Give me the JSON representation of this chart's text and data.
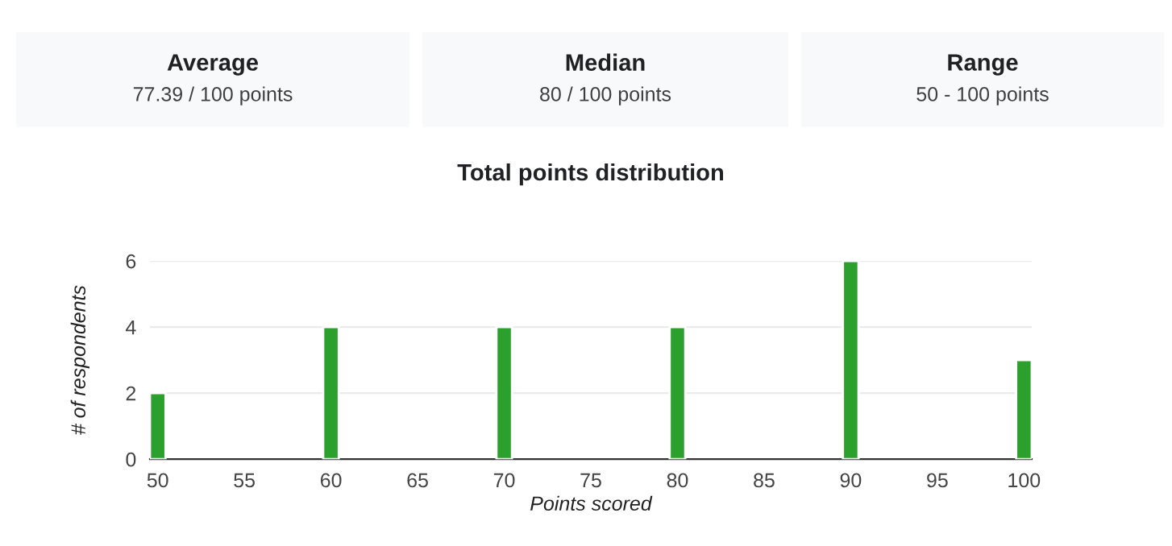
{
  "chart_data": [
    {
      "type": "other",
      "title": "Average",
      "annotations": [
        "77.39 / 100 points"
      ]
    },
    {
      "type": "other",
      "title": "Median",
      "annotations": [
        "80 / 100 points"
      ]
    },
    {
      "type": "other",
      "title": "Range",
      "annotations": [
        "50 - 100 points"
      ]
    },
    {
      "type": "bar",
      "title": "Total points distribution",
      "xlabel": "Points scored",
      "ylabel": "# of respondents",
      "x": [
        50,
        60,
        70,
        80,
        90,
        100
      ],
      "values": [
        2,
        4,
        4,
        4,
        6,
        3
      ],
      "color": "#2ca02c",
      "xlim": [
        49.55,
        100.45
      ],
      "xticks": [
        50,
        55,
        60,
        65,
        70,
        75,
        80,
        85,
        90,
        95,
        100
      ],
      "ylim": [
        0,
        6
      ],
      "yticks": [
        0,
        2,
        4,
        6
      ],
      "grid": "y",
      "legend": false
    }
  ]
}
